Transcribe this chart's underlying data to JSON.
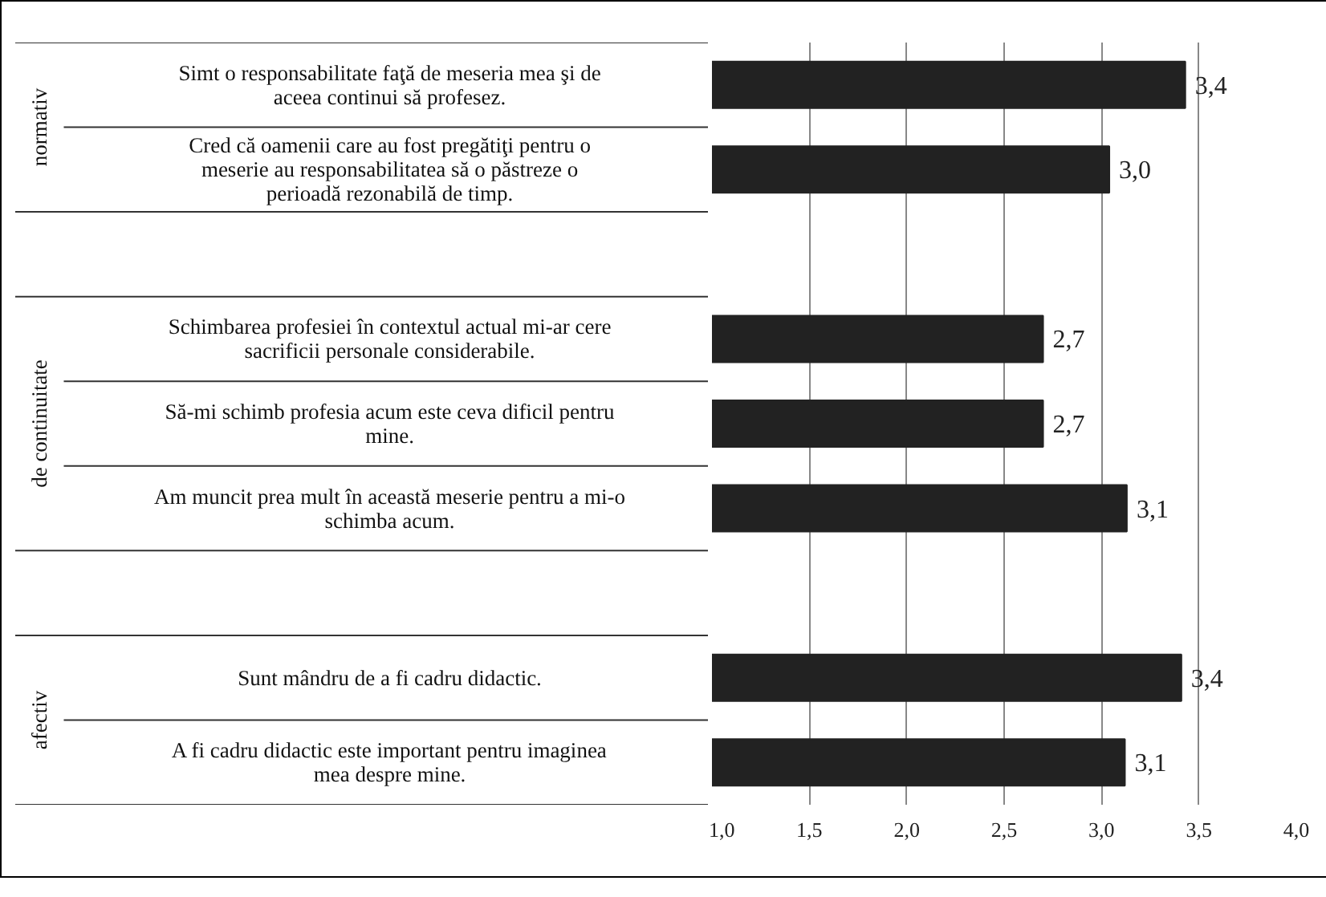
{
  "chart_data": {
    "type": "bar",
    "orientation": "horizontal",
    "categories": [
      "Simt o responsabilitate faţă de meseria mea şi de aceea continui să profesez.",
      "Cred că oamenii care au fost pregătiţi pentru o meserie au responsabilitatea să o păstreze o perioadă rezonabilă de timp.",
      null,
      "Schimbarea profesiei în contextul actual mi-ar cere sacrificii personale considerabile.",
      "Să-mi schimb profesia acum este ceva dificil pentru mine.",
      "Am muncit prea mult în această meserie pentru a mi-o schimba acum.",
      null,
      "Sunt mândru de a fi cadru didactic.",
      "A fi cadru didactic este important pentru imaginea mea despre mine."
    ],
    "values": [
      3.43,
      3.04,
      null,
      2.7,
      2.7,
      3.13,
      null,
      3.41,
      3.12
    ],
    "value_labels": [
      "3,4",
      "3,0",
      null,
      "2,7",
      "2,7",
      "3,1",
      null,
      "3,4",
      "3,1"
    ],
    "color": "#222222",
    "annotations": [
      "normativ",
      "de continuitate",
      "afectiv"
    ],
    "xlim": [
      1.0,
      4.0
    ],
    "xticks": [
      {
        "value": 1.0,
        "label": "1,0"
      },
      {
        "value": 1.5,
        "label": "1,5"
      },
      {
        "value": 2.0,
        "label": "2,0"
      },
      {
        "value": 2.5,
        "label": "2,5"
      },
      {
        "value": 3.0,
        "label": "3,0"
      },
      {
        "value": 3.5,
        "label": "3,5"
      },
      {
        "value": 4.0,
        "label": "4,0"
      }
    ],
    "grid": "x"
  }
}
